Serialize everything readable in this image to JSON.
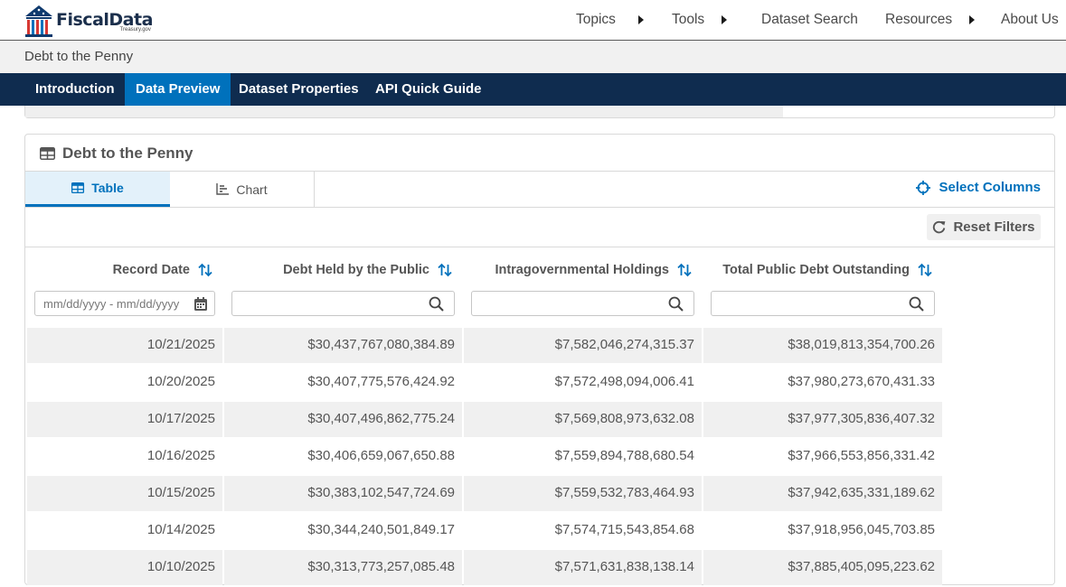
{
  "header": {
    "logo_name": "FiscalData",
    "logo_sub": "Treasury.gov",
    "nav": [
      {
        "label": "Topics"
      },
      {
        "label": "Tools"
      },
      {
        "label": "Dataset Search"
      },
      {
        "label": "Resources"
      },
      {
        "label": "About Us"
      }
    ]
  },
  "breadcrumb": "Debt to the Penny",
  "section_tabs": [
    "Introduction",
    "Data Preview",
    "Dataset Properties",
    "API Quick Guide"
  ],
  "card": {
    "title": "Debt to the Penny",
    "view_tabs": {
      "table": "Table",
      "chart": "Chart"
    },
    "select_columns": "Select Columns",
    "reset_filters": "Reset Filters"
  },
  "table": {
    "columns": [
      "Record Date",
      "Debt Held by the Public",
      "Intragovernmental Holdings",
      "Total Public Debt Outstanding"
    ],
    "date_filter_placeholder": "mm/dd/yyyy - mm/dd/yyyy",
    "rows": [
      [
        "10/21/2025",
        "$30,437,767,080,384.89",
        "$7,582,046,274,315.37",
        "$38,019,813,354,700.26"
      ],
      [
        "10/20/2025",
        "$30,407,775,576,424.92",
        "$7,572,498,094,006.41",
        "$37,980,273,670,431.33"
      ],
      [
        "10/17/2025",
        "$30,407,496,862,775.24",
        "$7,569,808,973,632.08",
        "$37,977,305,836,407.32"
      ],
      [
        "10/16/2025",
        "$30,406,659,067,650.88",
        "$7,559,894,788,680.54",
        "$37,966,553,856,331.42"
      ],
      [
        "10/15/2025",
        "$30,383,102,547,724.69",
        "$7,559,532,783,464.93",
        "$37,942,635,331,189.62"
      ],
      [
        "10/14/2025",
        "$30,344,240,501,849.17",
        "$7,574,715,543,854.68",
        "$37,918,956,045,703.85"
      ],
      [
        "10/10/2025",
        "$30,313,773,257,085.48",
        "$7,571,631,838,138.14",
        "$37,885,405,095,223.62"
      ]
    ]
  },
  "colors": {
    "navy": "#0f2c4f",
    "primary": "#0071bc",
    "row_stripe": "#f0f0f0"
  }
}
